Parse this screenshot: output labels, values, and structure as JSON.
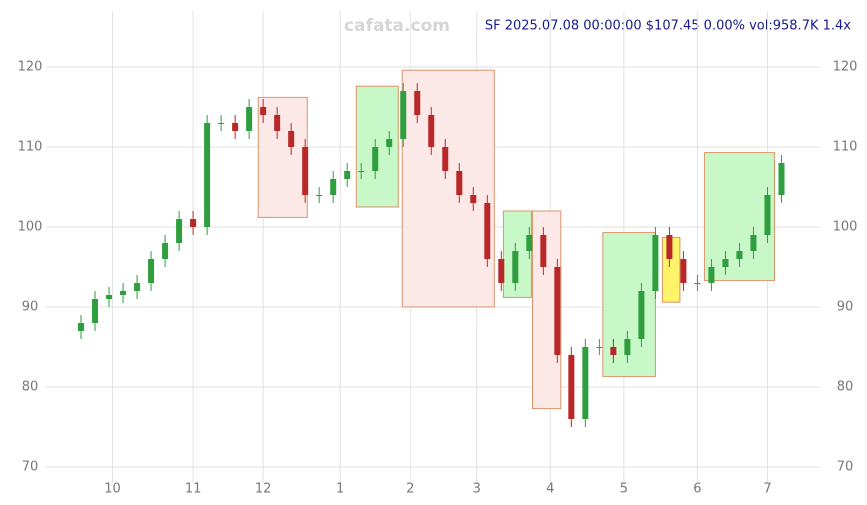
{
  "chart_data": {
    "type": "candlestick",
    "watermark": "cafata.com",
    "header": "SF 2025.07.08 00:00:00 $107.45 0.00% vol:958.7K 1.4x",
    "xlim": [
      -10,
      211
    ],
    "ylim": [
      68,
      127
    ],
    "yticks": [
      70,
      80,
      90,
      100,
      110,
      120
    ],
    "xticks": [
      {
        "value": 9,
        "label": "10"
      },
      {
        "value": 32,
        "label": "11"
      },
      {
        "value": 52,
        "label": "12"
      },
      {
        "value": 74,
        "label": "1"
      },
      {
        "value": 94,
        "label": "2"
      },
      {
        "value": 113,
        "label": "3"
      },
      {
        "value": 134,
        "label": "4"
      },
      {
        "value": 155,
        "label": "5"
      },
      {
        "value": 176,
        "label": "6"
      },
      {
        "value": 196,
        "label": "7"
      }
    ],
    "grid": true,
    "up_color": "#2e9e3e",
    "down_color": "#b82828",
    "candles": {
      "x": [
        0,
        4,
        8,
        12,
        16,
        20,
        24,
        28,
        32,
        36,
        40,
        44,
        48,
        52,
        56,
        60,
        64,
        68,
        72,
        76,
        80,
        84,
        88,
        92,
        96,
        100,
        104,
        108,
        112,
        116,
        120,
        124,
        128,
        132,
        136,
        140,
        144,
        148,
        152,
        156,
        160,
        164,
        168,
        172,
        176,
        180,
        184,
        188,
        192,
        196,
        200
      ],
      "open": [
        87,
        88,
        91,
        91.5,
        92,
        93,
        96,
        98,
        101,
        100,
        113,
        113,
        112,
        115,
        114,
        112,
        110,
        104,
        104,
        106,
        107,
        107,
        110,
        111,
        117,
        114,
        110,
        107,
        104,
        103,
        96,
        93,
        97,
        99,
        95,
        84,
        76,
        85,
        85,
        84,
        86,
        92,
        99,
        96,
        93,
        93,
        95,
        96,
        97,
        99,
        104
      ],
      "high": [
        89,
        92,
        92.5,
        93,
        94,
        97,
        99,
        102,
        102,
        114,
        114,
        114,
        116,
        116,
        115,
        113,
        111,
        105,
        107,
        108,
        108,
        111,
        112,
        118,
        118,
        115,
        111,
        108,
        105,
        104,
        97,
        98,
        100,
        100,
        96,
        85,
        86,
        86,
        86,
        87,
        93,
        100,
        100,
        97,
        94,
        96,
        97,
        98,
        100,
        105,
        109
      ],
      "low": [
        86,
        87,
        90,
        90.5,
        91,
        92,
        95,
        97,
        99,
        99,
        112,
        111,
        111,
        113,
        111,
        109,
        103,
        103,
        103,
        105,
        106,
        106,
        109,
        110,
        113,
        109,
        106,
        103,
        102,
        95,
        92,
        92,
        96,
        94,
        83,
        75,
        75,
        84,
        83,
        83,
        85,
        91,
        95,
        92,
        92,
        92,
        94,
        95,
        96,
        98,
        103
      ],
      "close": [
        88,
        91,
        91.5,
        92,
        93,
        96,
        98,
        101,
        100,
        113,
        113,
        112,
        115,
        114,
        112,
        110,
        104,
        104,
        106,
        107,
        107,
        110,
        111,
        117,
        114,
        110,
        107,
        104,
        103,
        96,
        93,
        97,
        99,
        95,
        84,
        76,
        85,
        85,
        84,
        86,
        92,
        99,
        96,
        93,
        93,
        95,
        96,
        97,
        99,
        104,
        108
      ]
    },
    "zones": [
      {
        "x": [
          50.6,
          64.6
        ],
        "y": [
          101.2,
          116.2
        ],
        "color": "#fde8e8"
      },
      {
        "x": [
          78.6,
          90.6
        ],
        "y": [
          102.5,
          117.6
        ],
        "color": "#c8f7c8"
      },
      {
        "x": [
          91.7,
          118
        ],
        "y": [
          90,
          119.6
        ],
        "color": "#fde8e8"
      },
      {
        "x": [
          120.6,
          128.6
        ],
        "y": [
          91.2,
          102
        ],
        "color": "#c8f7c8"
      },
      {
        "x": [
          128.9,
          137
        ],
        "y": [
          77.3,
          102
        ],
        "color": "#fde8e8"
      },
      {
        "x": [
          149,
          164
        ],
        "y": [
          81.3,
          99.3
        ],
        "color": "#c8f7c8"
      },
      {
        "x": [
          166,
          171
        ],
        "y": [
          90.6,
          98.7
        ],
        "color": "#fff36a"
      },
      {
        "x": [
          178,
          198
        ],
        "y": [
          93.3,
          109.3
        ],
        "color": "#c8f7c8"
      }
    ]
  }
}
